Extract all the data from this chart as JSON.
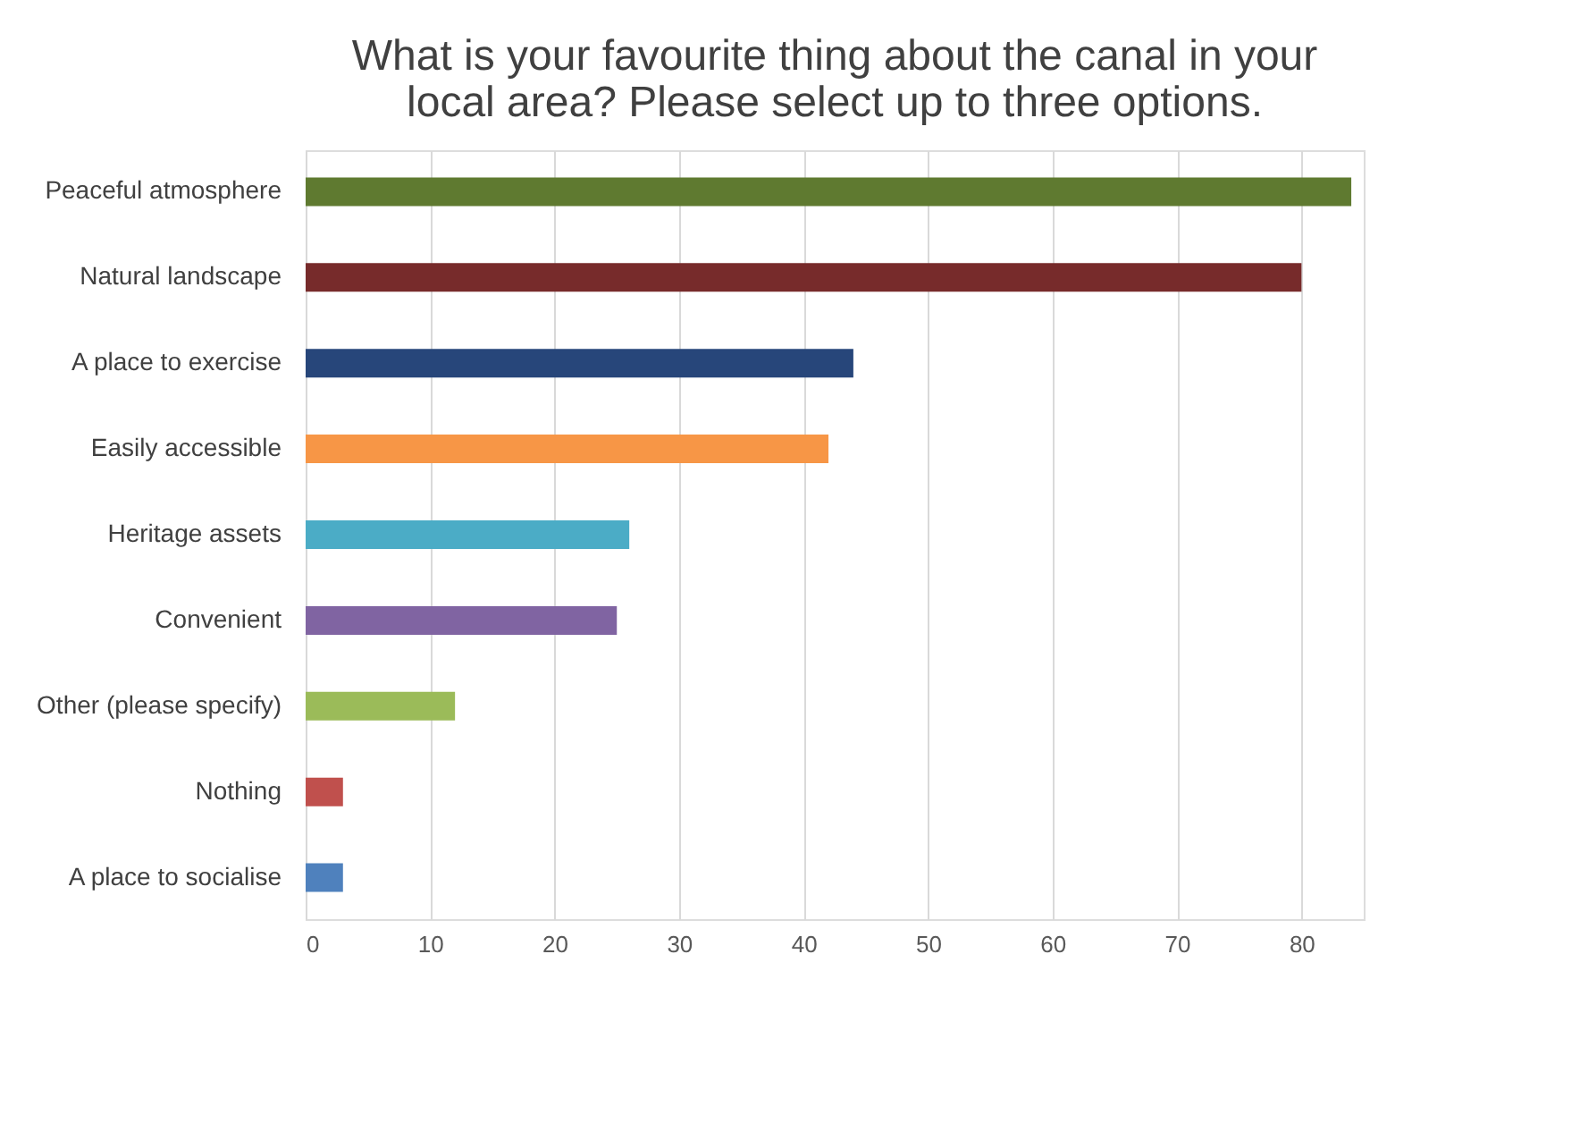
{
  "chart_data": {
    "type": "bar",
    "orientation": "horizontal",
    "title": "What is your favourite thing about the canal in your local area? Please select up to three options.",
    "categories": [
      "Peaceful atmosphere",
      "Natural landscape",
      "A place to exercise",
      "Easily accessible",
      "Heritage assets",
      "Convenient",
      "Other (please specify)",
      "Nothing",
      "A place to socialise"
    ],
    "values": [
      84,
      80,
      44,
      42,
      26,
      25,
      12,
      3,
      3
    ],
    "colors": [
      "#5f7a30",
      "#772b2b",
      "#27467a",
      "#f79646",
      "#4bacc6",
      "#8064a2",
      "#9bbb59",
      "#c0504d",
      "#4f81bd"
    ],
    "xlim": [
      0,
      85
    ],
    "xticks": [
      0,
      10,
      20,
      30,
      40,
      50,
      60,
      70,
      80
    ],
    "grid": "x"
  }
}
